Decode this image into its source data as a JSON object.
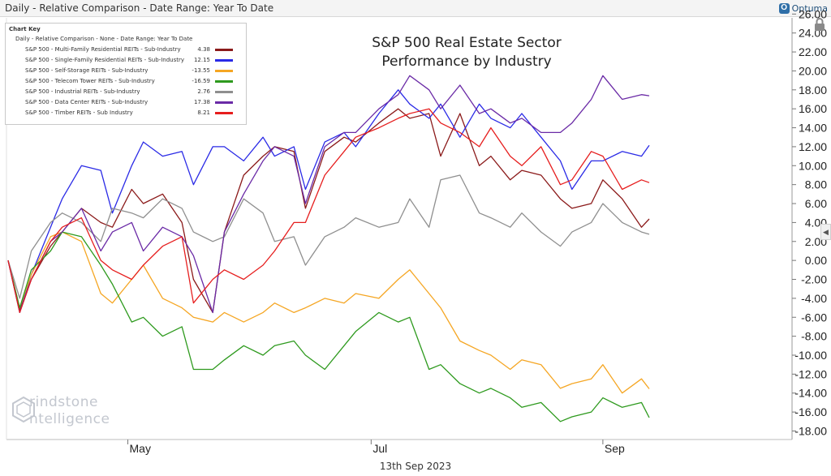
{
  "header": {
    "title": "Daily - Relative Comparison - Date Range: Year To Date",
    "brand": "Optuma"
  },
  "footer": {
    "date": "13th Sep 2023"
  },
  "watermark": {
    "line1": "rindstone",
    "line2": "ntelligence"
  },
  "legend": {
    "title": "Chart Key",
    "subtitle": "Daily - Relative Comparison - None - Date Range: Year To Date",
    "items": [
      {
        "name": "S&P 500 - Multi-Family Residential REITs - Sub-Industry",
        "value": "4.38",
        "color": "#8b1a1a"
      },
      {
        "name": "S&P 500 - Single-Family Residential REITs - Sub-Industry",
        "value": "12.15",
        "color": "#2a2ae6"
      },
      {
        "name": "S&P 500 - Self-Storage REITs - Sub-Industry",
        "value": "-13.55",
        "color": "#f5a623"
      },
      {
        "name": "S&P 500 - Telecom Tower REITs - Sub-Industry",
        "value": "-16.59",
        "color": "#2e9a1e"
      },
      {
        "name": "S&P 500 - Industrial REITs - Sub-Industry",
        "value": "2.76",
        "color": "#8f8f8f"
      },
      {
        "name": "S&P 500 - Data Center REITs - Sub-Industry",
        "value": "17.38",
        "color": "#6a2aa6"
      },
      {
        "name": "S&P 500 - Timber REITs - Sub Industry",
        "value": "8.21",
        "color": "#e61e1e"
      }
    ]
  },
  "chart_data": {
    "type": "line",
    "title": [
      "S&P 500 Real Estate Sector",
      "Performance by Industry"
    ],
    "xlabel": "",
    "ylabel": "",
    "ylim": [
      -18,
      26
    ],
    "yticks": [
      26,
      24,
      22,
      20,
      18,
      16,
      14,
      12,
      10,
      8,
      6,
      4,
      2,
      0,
      -2,
      -4,
      -6,
      -8,
      -10,
      -12,
      -14,
      -16,
      -18
    ],
    "ytick_labels": [
      "26.00",
      "24.00",
      "22.00",
      "20.00",
      "18.00",
      "16.00",
      "14.00",
      "12.00",
      "10.00",
      "8.00",
      "6.00",
      "4.00",
      "2.00",
      "0.00",
      "-2.00",
      "-4.00",
      "-6.00",
      "-8.00",
      "-10.00",
      "-12.00",
      "-14.00",
      "-16.00",
      "-18.00"
    ],
    "x_start": "2023-03-31",
    "x_end": "2023-09-13",
    "xticks": [
      {
        "label": "May",
        "date": "2023-05-01"
      },
      {
        "label": "Jul",
        "date": "2023-07-03"
      },
      {
        "label": "Sep",
        "date": "2023-09-01"
      }
    ],
    "grid": false,
    "legend_position": "top-left",
    "series": [
      {
        "name": "S&P 500 - Multi-Family Residential REITs - Sub-Industry",
        "color": "#8b1a1a",
        "x": [
          "2023-03-31",
          "2023-04-03",
          "2023-04-06",
          "2023-04-11",
          "2023-04-14",
          "2023-04-19",
          "2023-04-24",
          "2023-04-27",
          "2023-05-02",
          "2023-05-05",
          "2023-05-10",
          "2023-05-15",
          "2023-05-18",
          "2023-05-23",
          "2023-05-26",
          "2023-05-31",
          "2023-06-05",
          "2023-06-08",
          "2023-06-13",
          "2023-06-16",
          "2023-06-21",
          "2023-06-26",
          "2023-06-29",
          "2023-07-05",
          "2023-07-10",
          "2023-07-13",
          "2023-07-18",
          "2023-07-21",
          "2023-07-26",
          "2023-07-31",
          "2023-08-03",
          "2023-08-08",
          "2023-08-11",
          "2023-08-16",
          "2023-08-21",
          "2023-08-24",
          "2023-08-29",
          "2023-09-01",
          "2023-09-06",
          "2023-09-11",
          "2023-09-13"
        ],
        "values": [
          0.0,
          -5.2,
          -2.0,
          1.5,
          3.0,
          5.5,
          4.0,
          3.5,
          7.5,
          6.0,
          7.0,
          4.0,
          -2.0,
          -5.5,
          3.0,
          9.0,
          11.0,
          12.0,
          11.5,
          5.5,
          11.5,
          13.0,
          12.5,
          14.5,
          16.0,
          15.0,
          15.5,
          11.0,
          15.5,
          10.0,
          11.0,
          8.5,
          9.5,
          9.0,
          6.5,
          5.5,
          6.0,
          8.5,
          6.5,
          3.5,
          4.38
        ]
      },
      {
        "name": "S&P 500 - Single-Family Residential REITs - Sub-Industry",
        "color": "#2a2ae6",
        "x": [
          "2023-03-31",
          "2023-04-03",
          "2023-04-06",
          "2023-04-11",
          "2023-04-14",
          "2023-04-19",
          "2023-04-24",
          "2023-04-27",
          "2023-05-02",
          "2023-05-05",
          "2023-05-10",
          "2023-05-15",
          "2023-05-18",
          "2023-05-23",
          "2023-05-26",
          "2023-05-31",
          "2023-06-05",
          "2023-06-08",
          "2023-06-13",
          "2023-06-16",
          "2023-06-21",
          "2023-06-26",
          "2023-06-29",
          "2023-07-05",
          "2023-07-10",
          "2023-07-13",
          "2023-07-18",
          "2023-07-21",
          "2023-07-26",
          "2023-07-31",
          "2023-08-03",
          "2023-08-08",
          "2023-08-11",
          "2023-08-16",
          "2023-08-21",
          "2023-08-24",
          "2023-08-29",
          "2023-09-01",
          "2023-09-06",
          "2023-09-11",
          "2023-09-13"
        ],
        "values": [
          0.0,
          -5.5,
          -1.5,
          3.5,
          6.5,
          10.0,
          9.5,
          5.0,
          10.0,
          12.5,
          11.0,
          11.5,
          8.0,
          12.0,
          12.0,
          10.5,
          13.0,
          11.0,
          12.0,
          7.5,
          12.5,
          13.5,
          12.0,
          15.5,
          18.0,
          16.5,
          15.0,
          16.5,
          13.0,
          16.5,
          15.0,
          14.0,
          15.5,
          13.0,
          10.5,
          7.5,
          10.5,
          10.5,
          11.5,
          11.0,
          12.15
        ]
      },
      {
        "name": "S&P 500 - Self-Storage REITs - Sub-Industry",
        "color": "#f5a623",
        "x": [
          "2023-03-31",
          "2023-04-03",
          "2023-04-06",
          "2023-04-11",
          "2023-04-14",
          "2023-04-19",
          "2023-04-24",
          "2023-04-27",
          "2023-05-02",
          "2023-05-05",
          "2023-05-10",
          "2023-05-15",
          "2023-05-18",
          "2023-05-23",
          "2023-05-26",
          "2023-05-31",
          "2023-06-05",
          "2023-06-08",
          "2023-06-13",
          "2023-06-16",
          "2023-06-21",
          "2023-06-26",
          "2023-06-29",
          "2023-07-05",
          "2023-07-10",
          "2023-07-13",
          "2023-07-18",
          "2023-07-21",
          "2023-07-26",
          "2023-07-31",
          "2023-08-03",
          "2023-08-08",
          "2023-08-11",
          "2023-08-16",
          "2023-08-21",
          "2023-08-24",
          "2023-08-29",
          "2023-09-01",
          "2023-09-06",
          "2023-09-11",
          "2023-09-13"
        ],
        "values": [
          0.0,
          -5.0,
          -1.5,
          2.5,
          3.0,
          2.0,
          -3.5,
          -4.5,
          -2.0,
          -0.5,
          -4.0,
          -5.0,
          -6.0,
          -6.5,
          -5.5,
          -6.5,
          -5.5,
          -4.5,
          -5.5,
          -5.0,
          -4.0,
          -4.5,
          -3.5,
          -4.0,
          -2.0,
          -1.0,
          -3.5,
          -5.0,
          -8.5,
          -9.5,
          -10.0,
          -11.5,
          -10.5,
          -11.0,
          -13.5,
          -13.0,
          -12.5,
          -11.0,
          -14.0,
          -12.5,
          -13.55
        ]
      },
      {
        "name": "S&P 500 - Telecom Tower REITs - Sub-Industry",
        "color": "#2e9a1e",
        "x": [
          "2023-03-31",
          "2023-04-03",
          "2023-04-06",
          "2023-04-11",
          "2023-04-14",
          "2023-04-19",
          "2023-04-24",
          "2023-04-27",
          "2023-05-02",
          "2023-05-05",
          "2023-05-10",
          "2023-05-15",
          "2023-05-18",
          "2023-05-23",
          "2023-05-26",
          "2023-05-31",
          "2023-06-05",
          "2023-06-08",
          "2023-06-13",
          "2023-06-16",
          "2023-06-21",
          "2023-06-26",
          "2023-06-29",
          "2023-07-05",
          "2023-07-10",
          "2023-07-13",
          "2023-07-18",
          "2023-07-21",
          "2023-07-26",
          "2023-07-31",
          "2023-08-03",
          "2023-08-08",
          "2023-08-11",
          "2023-08-16",
          "2023-08-21",
          "2023-08-24",
          "2023-08-29",
          "2023-09-01",
          "2023-09-06",
          "2023-09-11",
          "2023-09-13"
        ],
        "values": [
          0.0,
          -5.0,
          -1.0,
          1.0,
          3.0,
          2.5,
          -0.5,
          -2.5,
          -6.5,
          -6.0,
          -8.0,
          -7.0,
          -11.5,
          -11.5,
          -10.5,
          -9.0,
          -10.0,
          -9.0,
          -8.5,
          -10.0,
          -11.5,
          -9.0,
          -7.5,
          -5.5,
          -6.5,
          -6.0,
          -11.5,
          -11.0,
          -13.0,
          -14.0,
          -13.5,
          -14.5,
          -15.5,
          -15.0,
          -17.0,
          -16.5,
          -16.0,
          -14.5,
          -15.5,
          -15.0,
          -16.59
        ]
      },
      {
        "name": "S&P 500 - Industrial REITs - Sub-Industry",
        "color": "#8f8f8f",
        "x": [
          "2023-03-31",
          "2023-04-03",
          "2023-04-06",
          "2023-04-11",
          "2023-04-14",
          "2023-04-19",
          "2023-04-24",
          "2023-04-27",
          "2023-05-02",
          "2023-05-05",
          "2023-05-10",
          "2023-05-15",
          "2023-05-18",
          "2023-05-23",
          "2023-05-26",
          "2023-05-31",
          "2023-06-05",
          "2023-06-08",
          "2023-06-13",
          "2023-06-16",
          "2023-06-21",
          "2023-06-26",
          "2023-06-29",
          "2023-07-05",
          "2023-07-10",
          "2023-07-13",
          "2023-07-18",
          "2023-07-21",
          "2023-07-26",
          "2023-07-31",
          "2023-08-03",
          "2023-08-08",
          "2023-08-11",
          "2023-08-16",
          "2023-08-21",
          "2023-08-24",
          "2023-08-29",
          "2023-09-01",
          "2023-09-06",
          "2023-09-11",
          "2023-09-13"
        ],
        "values": [
          0.0,
          -4.0,
          1.0,
          4.0,
          5.0,
          4.0,
          2.0,
          5.5,
          5.0,
          4.5,
          6.5,
          5.5,
          3.0,
          2.0,
          2.5,
          6.5,
          5.0,
          2.0,
          2.5,
          -0.5,
          2.5,
          3.5,
          4.5,
          3.5,
          4.0,
          6.5,
          3.5,
          8.5,
          9.0,
          5.0,
          4.5,
          3.5,
          5.0,
          3.0,
          1.5,
          3.0,
          4.0,
          6.0,
          4.0,
          3.0,
          2.76
        ]
      },
      {
        "name": "S&P 500 - Data Center REITs - Sub-Industry",
        "color": "#6a2aa6",
        "x": [
          "2023-03-31",
          "2023-04-03",
          "2023-04-06",
          "2023-04-11",
          "2023-04-14",
          "2023-04-19",
          "2023-04-24",
          "2023-04-27",
          "2023-05-02",
          "2023-05-05",
          "2023-05-10",
          "2023-05-15",
          "2023-05-18",
          "2023-05-23",
          "2023-05-26",
          "2023-05-31",
          "2023-06-05",
          "2023-06-08",
          "2023-06-13",
          "2023-06-16",
          "2023-06-21",
          "2023-06-26",
          "2023-06-29",
          "2023-07-05",
          "2023-07-10",
          "2023-07-13",
          "2023-07-18",
          "2023-07-21",
          "2023-07-26",
          "2023-07-31",
          "2023-08-03",
          "2023-08-08",
          "2023-08-11",
          "2023-08-16",
          "2023-08-21",
          "2023-08-24",
          "2023-08-29",
          "2023-09-01",
          "2023-09-06",
          "2023-09-11",
          "2023-09-13"
        ],
        "values": [
          0.0,
          -5.5,
          -2.0,
          2.0,
          3.0,
          5.5,
          1.0,
          3.0,
          4.0,
          1.0,
          3.5,
          2.5,
          0.5,
          -5.5,
          3.0,
          7.0,
          10.5,
          12.0,
          11.0,
          6.0,
          12.0,
          13.5,
          13.5,
          16.0,
          17.5,
          19.5,
          18.0,
          16.0,
          18.5,
          15.5,
          16.0,
          14.5,
          15.0,
          13.5,
          13.5,
          14.5,
          17.0,
          19.5,
          17.0,
          17.5,
          17.38
        ]
      },
      {
        "name": "S&P 500 - Timber REITs - Sub Industry",
        "color": "#e61e1e",
        "x": [
          "2023-03-31",
          "2023-04-03",
          "2023-04-06",
          "2023-04-11",
          "2023-04-14",
          "2023-04-19",
          "2023-04-24",
          "2023-04-27",
          "2023-05-02",
          "2023-05-05",
          "2023-05-10",
          "2023-05-15",
          "2023-05-18",
          "2023-05-23",
          "2023-05-26",
          "2023-05-31",
          "2023-06-05",
          "2023-06-08",
          "2023-06-13",
          "2023-06-16",
          "2023-06-21",
          "2023-06-26",
          "2023-06-29",
          "2023-07-05",
          "2023-07-10",
          "2023-07-13",
          "2023-07-18",
          "2023-07-21",
          "2023-07-26",
          "2023-07-31",
          "2023-08-03",
          "2023-08-08",
          "2023-08-11",
          "2023-08-16",
          "2023-08-21",
          "2023-08-24",
          "2023-08-29",
          "2023-09-01",
          "2023-09-06",
          "2023-09-11",
          "2023-09-13"
        ],
        "values": [
          0.0,
          -5.5,
          -2.0,
          2.0,
          3.5,
          4.5,
          0.0,
          -1.0,
          -2.0,
          -0.5,
          1.5,
          2.5,
          -4.5,
          -2.0,
          -1.0,
          -2.0,
          -0.5,
          1.0,
          4.0,
          4.0,
          9.0,
          11.5,
          13.0,
          14.0,
          15.0,
          15.5,
          16.0,
          14.5,
          13.5,
          12.0,
          14.0,
          11.0,
          10.0,
          12.0,
          8.0,
          8.5,
          11.5,
          11.0,
          7.5,
          8.5,
          8.21
        ]
      }
    ]
  }
}
